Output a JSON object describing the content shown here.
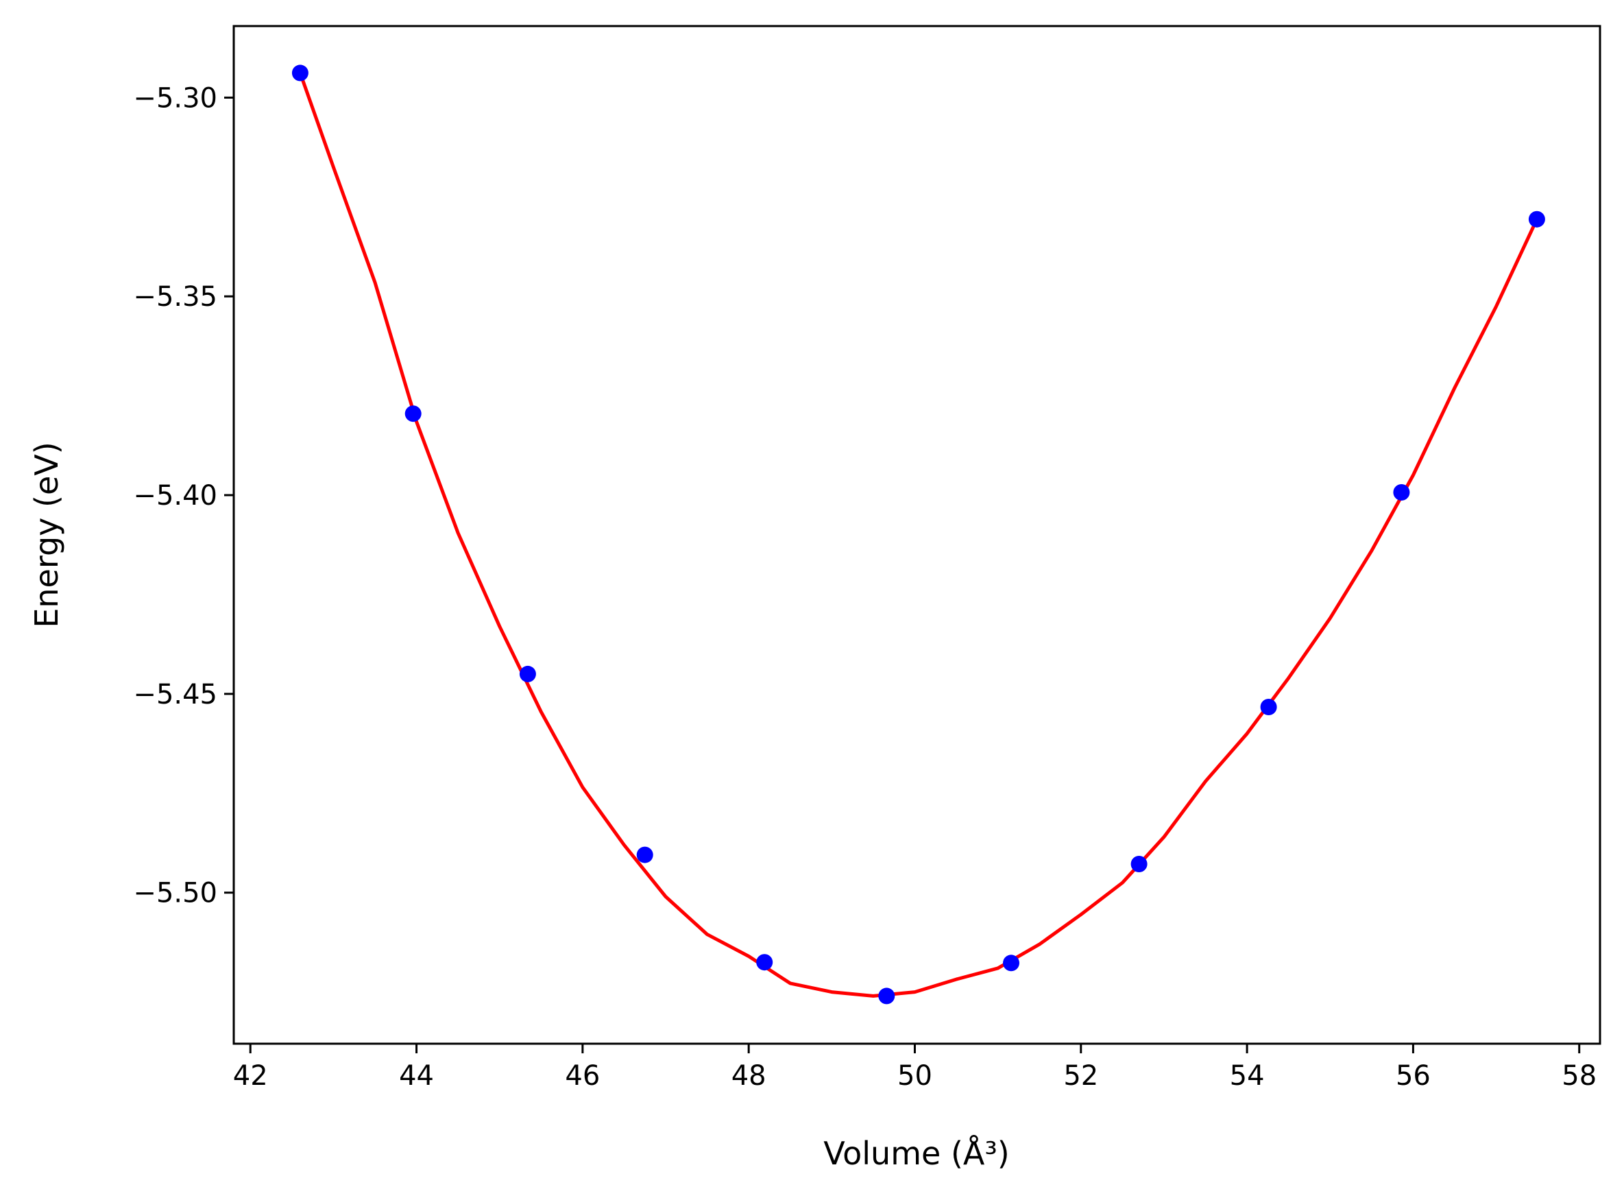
{
  "chart_data": {
    "type": "scatter",
    "xlabel": "Volume (Å³)",
    "ylabel": "Energy (eV)",
    "xlim": [
      41.8,
      58.25
    ],
    "ylim": [
      -5.538,
      -5.282
    ],
    "xticks": [
      42,
      44,
      46,
      48,
      50,
      52,
      54,
      56,
      58
    ],
    "yticks": [
      -5.3,
      -5.35,
      -5.4,
      -5.45,
      -5.5
    ],
    "xtick_labels": [
      "42",
      "44",
      "46",
      "48",
      "50",
      "52",
      "54",
      "56",
      "58"
    ],
    "ytick_labels": [
      "−5.30",
      "−5.35",
      "−5.40",
      "−5.45",
      "−5.50"
    ],
    "grid": false,
    "legend": null,
    "colors": {
      "points": "#0000ff",
      "fit": "#ff0000",
      "axes": "#000000"
    },
    "series": [
      {
        "type": "scatter",
        "x": [
          42.6,
          43.96,
          45.34,
          46.75,
          48.19,
          49.66,
          51.16,
          52.7,
          54.26,
          55.86,
          57.49
        ],
        "y": [
          -5.2938,
          -5.3795,
          -5.445,
          -5.4905,
          -5.5175,
          -5.526,
          -5.5177,
          -5.4928,
          -5.4533,
          -5.3993,
          -5.3306
        ]
      },
      {
        "type": "line",
        "x": [
          42.6,
          43.0,
          43.5,
          44.0,
          44.5,
          45.0,
          45.5,
          46.0,
          46.5,
          47.0,
          47.5,
          48.0,
          48.5,
          49.0,
          49.5,
          50.0,
          50.5,
          51.0,
          51.5,
          52.0,
          52.5,
          53.0,
          53.5,
          54.0,
          54.5,
          55.0,
          55.5,
          56.0,
          56.5,
          57.0,
          57.49
        ],
        "y": [
          -5.2938,
          -5.3175,
          -5.3465,
          -5.3815,
          -5.4095,
          -5.433,
          -5.4545,
          -5.4735,
          -5.488,
          -5.501,
          -5.5105,
          -5.516,
          -5.5228,
          -5.525,
          -5.526,
          -5.525,
          -5.5218,
          -5.519,
          -5.513,
          -5.5055,
          -5.4975,
          -5.486,
          -5.472,
          -5.46,
          -5.446,
          -5.431,
          -5.414,
          -5.395,
          -5.373,
          -5.3525,
          -5.3306
        ]
      }
    ]
  }
}
